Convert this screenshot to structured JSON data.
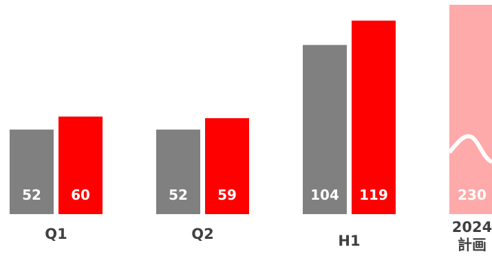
{
  "colors": {
    "previous": "#808080",
    "current": "#ff0000",
    "plan": "#ffaaaa",
    "label_text": "#ffffff",
    "category_text": "#404040"
  },
  "chart_data": {
    "type": "bar",
    "categories": [
      "Q1",
      "Q2",
      "H1"
    ],
    "series": [
      {
        "values": [
          52,
          52,
          104
        ]
      },
      {
        "values": [
          60,
          59,
          119
        ]
      }
    ],
    "plan": {
      "label_lines": [
        "2024",
        "計画"
      ],
      "value": 230,
      "axis_break": true
    },
    "ylim": [
      0,
      135
    ],
    "grid": false,
    "legend": "none"
  }
}
